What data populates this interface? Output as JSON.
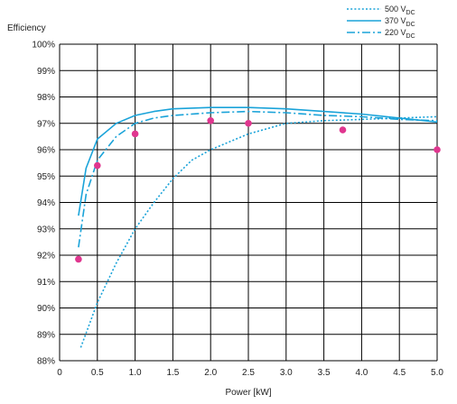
{
  "chart_data": {
    "type": "line",
    "ylabel": "Efficiency",
    "xlabel": "Power [kW]",
    "xlim": [
      0,
      5.0
    ],
    "ylim": [
      88,
      100
    ],
    "x_ticks": [
      "0",
      "0.5",
      "1.0",
      "1.5",
      "2.0",
      "2.5",
      "3.0",
      "3.5",
      "4.0",
      "4.5",
      "5.0"
    ],
    "y_ticks": [
      "88%",
      "89%",
      "90%",
      "91%",
      "92%",
      "93%",
      "94%",
      "95%",
      "96%",
      "97%",
      "98%",
      "99%",
      "100%"
    ],
    "grid": true,
    "legend_position": "top-right",
    "series": [
      {
        "name": "500 V",
        "name_sub": "DC",
        "style": "dotted",
        "color": "#1aa3d9",
        "x": [
          0.28,
          0.5,
          0.75,
          1.0,
          1.25,
          1.5,
          1.75,
          2.0,
          2.5,
          3.0,
          3.5,
          4.0,
          4.5,
          5.0
        ],
        "y": [
          88.5,
          90.2,
          91.7,
          93.0,
          94.0,
          94.9,
          95.6,
          96.0,
          96.6,
          97.0,
          97.1,
          97.15,
          97.2,
          97.25
        ]
      },
      {
        "name": "370 V",
        "name_sub": "DC",
        "style": "solid",
        "color": "#1aa3d9",
        "x": [
          0.25,
          0.35,
          0.5,
          0.75,
          1.0,
          1.25,
          1.5,
          2.0,
          2.5,
          3.0,
          3.5,
          4.0,
          4.5,
          5.0
        ],
        "y": [
          93.5,
          95.3,
          96.4,
          97.0,
          97.3,
          97.45,
          97.55,
          97.6,
          97.6,
          97.55,
          97.45,
          97.35,
          97.2,
          97.05
        ]
      },
      {
        "name": "220 V",
        "name_sub": "DC",
        "style": "dashdot",
        "color": "#1aa3d9",
        "x": [
          0.25,
          0.35,
          0.5,
          0.75,
          1.0,
          1.25,
          1.5,
          2.0,
          2.5,
          3.0,
          3.5,
          4.0,
          4.5,
          5.0
        ],
        "y": [
          92.3,
          94.3,
          95.6,
          96.5,
          97.0,
          97.2,
          97.3,
          97.4,
          97.45,
          97.4,
          97.3,
          97.25,
          97.15,
          97.1
        ]
      },
      {
        "style": "points",
        "color": "#e0368f",
        "x": [
          0.25,
          0.5,
          1.0,
          2.0,
          2.5,
          3.75,
          5.0
        ],
        "y": [
          91.85,
          95.4,
          96.6,
          97.1,
          97.0,
          96.75,
          96.0
        ]
      }
    ]
  }
}
